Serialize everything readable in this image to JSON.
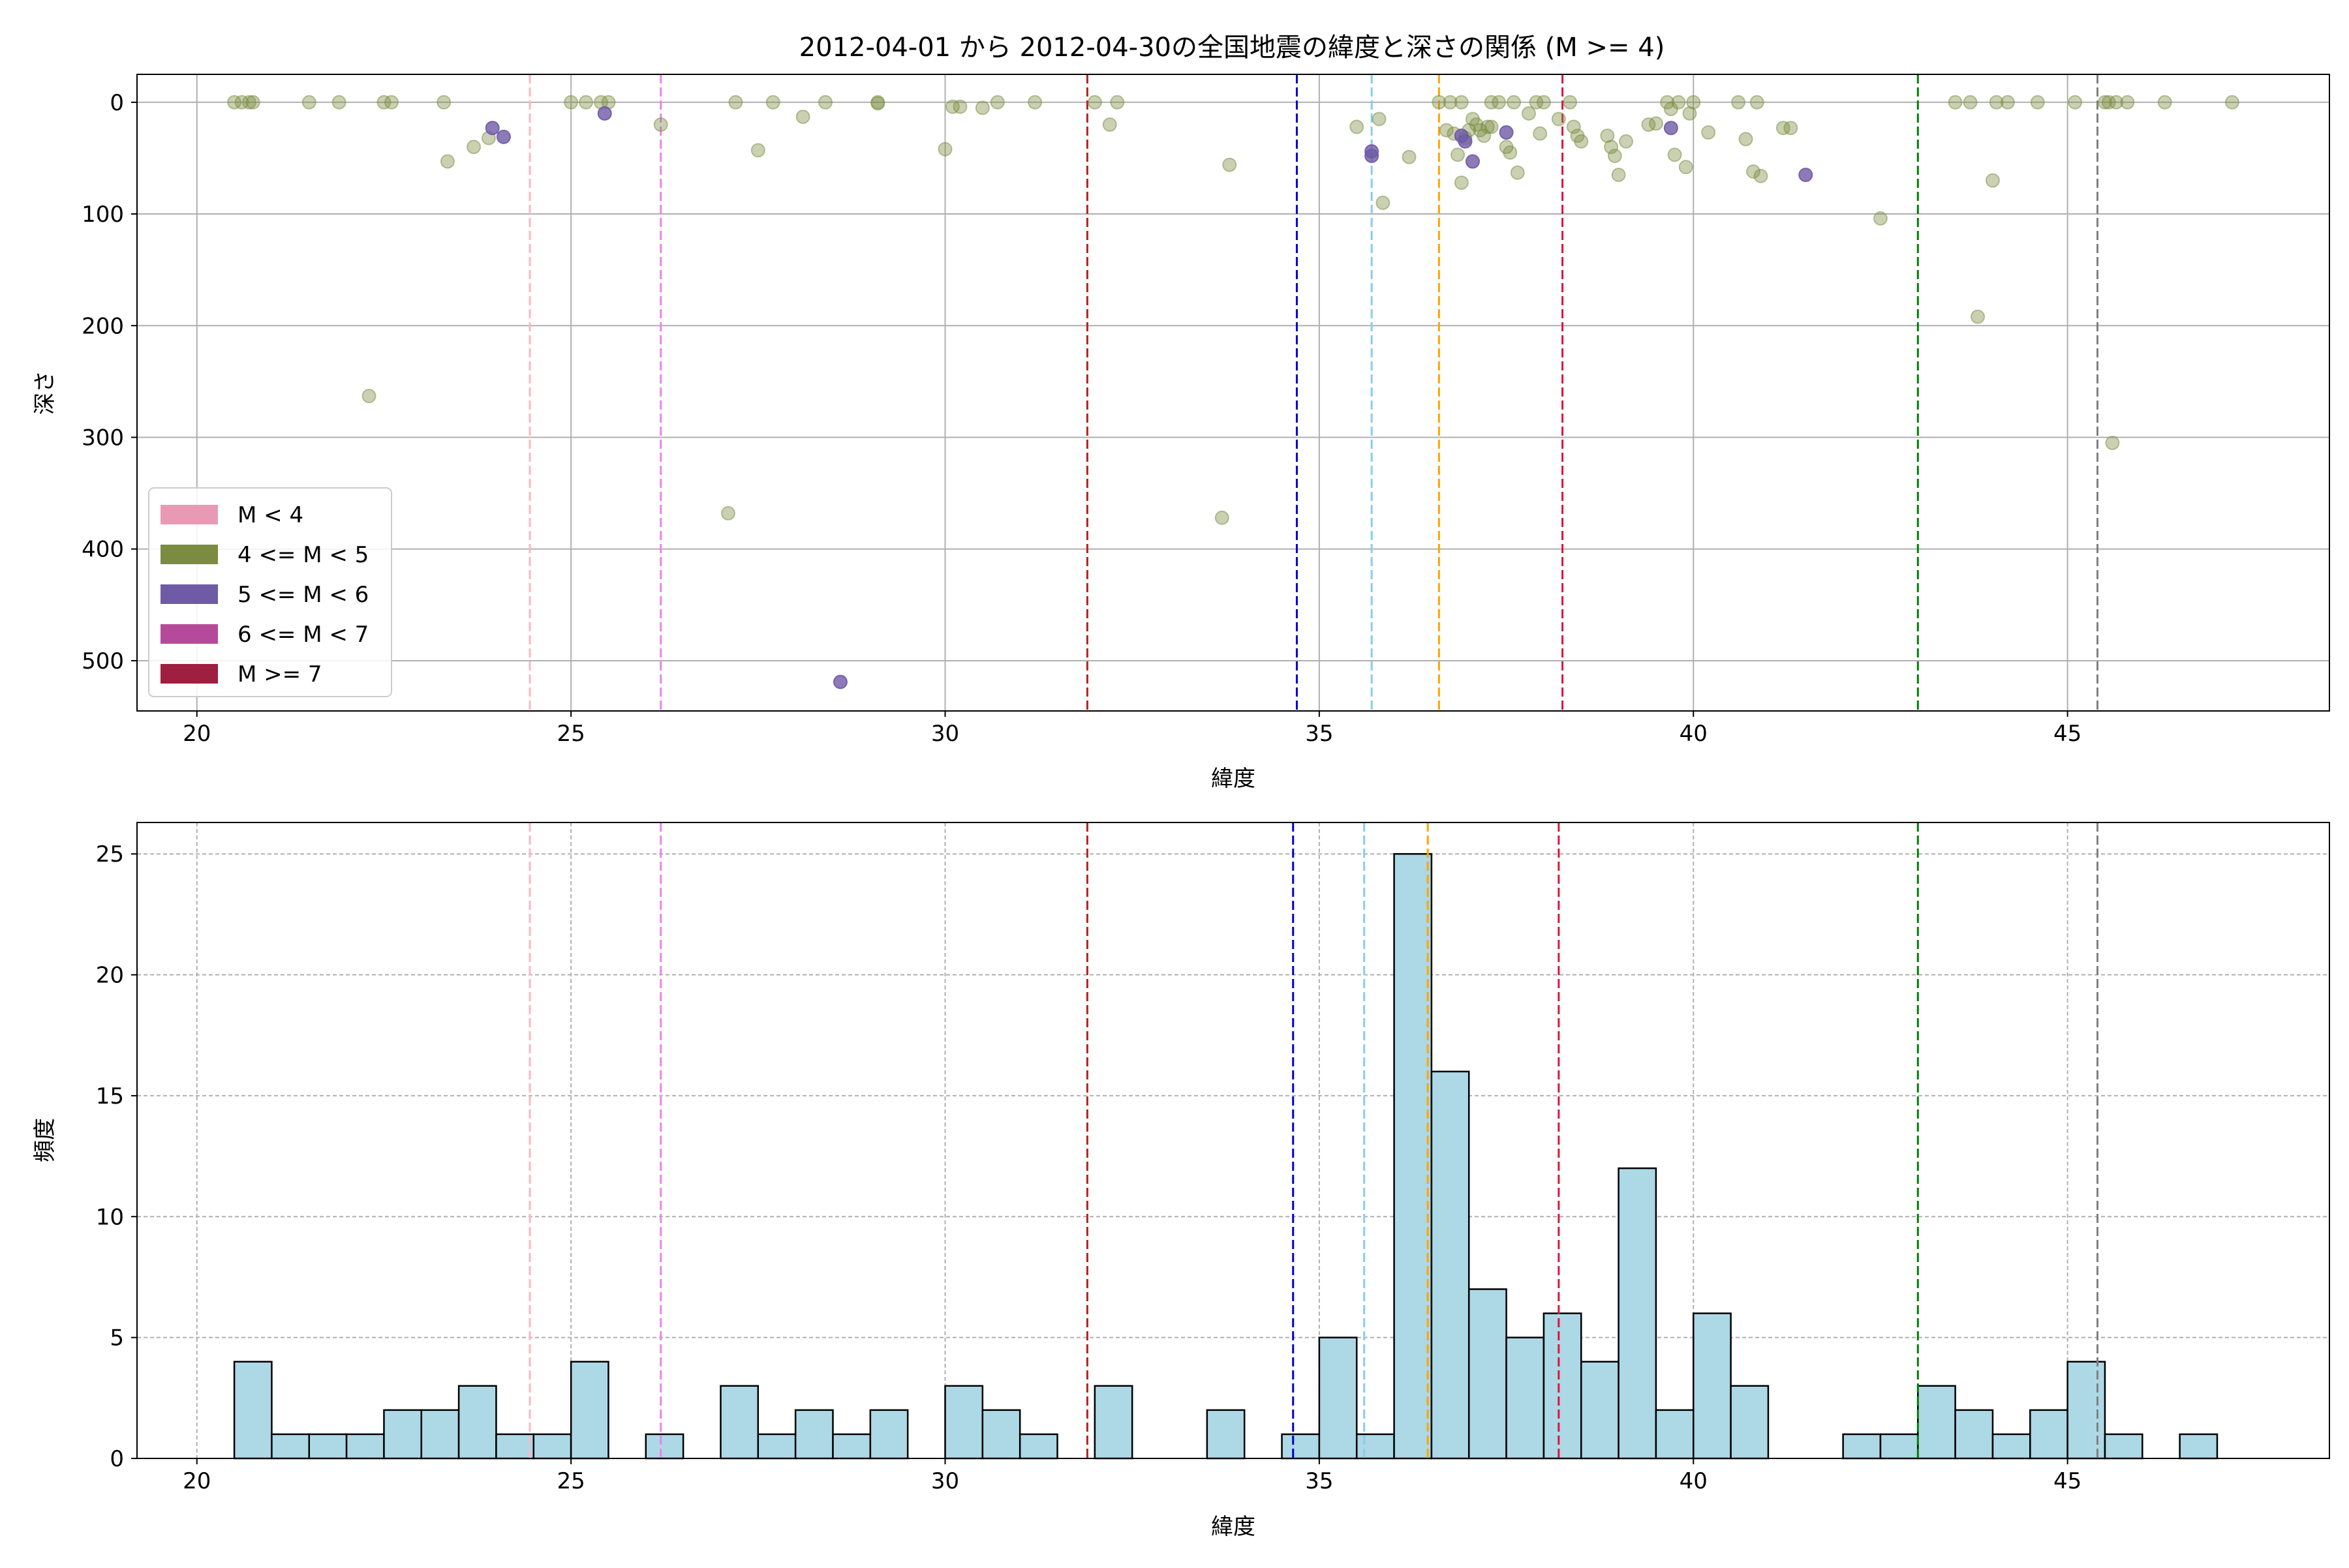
{
  "chart_data": [
    {
      "type": "scatter",
      "title": "2012-04-01 から 2012-04-30の全国地震の緯度と深さの関係 (M >= 4)",
      "xlabel": "緯度",
      "ylabel": "深さ",
      "xlim": [
        19.2,
        48.5
      ],
      "ylim": [
        545,
        -25
      ],
      "y_inverted": true,
      "xticks": [
        20,
        25,
        30,
        35,
        40,
        45
      ],
      "yticks": [
        0,
        100,
        200,
        300,
        400,
        500
      ],
      "grid": true,
      "legend_position": "lower-left",
      "legend": [
        {
          "label": "M < 4",
          "color": "#e89ab4"
        },
        {
          "label": "4 <= M < 5",
          "color": "#7b8c40"
        },
        {
          "label": "5 <= M < 6",
          "color": "#6f5aa6"
        },
        {
          "label": "6 <= M < 7",
          "color": "#b64a9a"
        },
        {
          "label": "M >= 7",
          "color": "#9e1f3f"
        }
      ],
      "vlines": [
        {
          "x": 24.45,
          "color": "#ffb6c1"
        },
        {
          "x": 26.2,
          "color": "#ee82ee"
        },
        {
          "x": 31.9,
          "color": "#b22222"
        },
        {
          "x": 34.7,
          "color": "#0000cd"
        },
        {
          "x": 35.7,
          "color": "#87ceeb"
        },
        {
          "x": 36.6,
          "color": "#ffa500"
        },
        {
          "x": 38.25,
          "color": "#dc143c"
        },
        {
          "x": 43.0,
          "color": "#008000"
        },
        {
          "x": 45.4,
          "color": "#808080"
        }
      ],
      "series": [
        {
          "magnitude_class": "4 <= M < 5",
          "color": "#7b8c40",
          "points": [
            [
              20.5,
              0
            ],
            [
              20.6,
              0
            ],
            [
              20.7,
              0
            ],
            [
              20.75,
              0
            ],
            [
              21.5,
              0
            ],
            [
              21.9,
              0
            ],
            [
              22.3,
              263
            ],
            [
              22.5,
              0
            ],
            [
              22.6,
              0
            ],
            [
              23.3,
              0
            ],
            [
              23.35,
              53
            ],
            [
              23.7,
              40
            ],
            [
              23.9,
              32
            ],
            [
              25.0,
              0
            ],
            [
              25.2,
              0
            ],
            [
              25.4,
              0
            ],
            [
              25.5,
              0
            ],
            [
              26.2,
              20
            ],
            [
              27.1,
              368
            ],
            [
              27.2,
              0
            ],
            [
              27.5,
              43
            ],
            [
              27.7,
              0
            ],
            [
              28.1,
              13
            ],
            [
              28.4,
              0
            ],
            [
              29.1,
              0
            ],
            [
              29.1,
              1
            ],
            [
              30.0,
              42
            ],
            [
              30.1,
              4
            ],
            [
              30.2,
              4
            ],
            [
              30.5,
              5
            ],
            [
              30.7,
              0
            ],
            [
              31.2,
              0
            ],
            [
              32.0,
              0
            ],
            [
              32.2,
              20
            ],
            [
              32.3,
              0
            ],
            [
              33.7,
              372
            ],
            [
              33.8,
              56
            ],
            [
              35.5,
              22
            ],
            [
              35.8,
              15
            ],
            [
              35.85,
              90
            ],
            [
              36.2,
              49
            ],
            [
              36.6,
              0
            ],
            [
              36.7,
              25
            ],
            [
              36.75,
              0
            ],
            [
              36.8,
              28
            ],
            [
              36.85,
              47
            ],
            [
              36.9,
              72
            ],
            [
              36.9,
              0
            ],
            [
              36.95,
              32
            ],
            [
              37.0,
              25
            ],
            [
              37.05,
              15
            ],
            [
              37.1,
              20
            ],
            [
              37.15,
              25
            ],
            [
              37.2,
              30
            ],
            [
              37.25,
              22
            ],
            [
              37.3,
              22
            ],
            [
              37.3,
              0
            ],
            [
              37.4,
              0
            ],
            [
              37.5,
              40
            ],
            [
              37.55,
              45
            ],
            [
              37.6,
              0
            ],
            [
              37.65,
              63
            ],
            [
              37.8,
              10
            ],
            [
              37.9,
              0
            ],
            [
              37.95,
              28
            ],
            [
              38.0,
              0
            ],
            [
              38.2,
              15
            ],
            [
              38.35,
              0
            ],
            [
              38.4,
              22
            ],
            [
              38.45,
              30
            ],
            [
              38.5,
              35
            ],
            [
              38.85,
              30
            ],
            [
              38.9,
              40
            ],
            [
              38.95,
              48
            ],
            [
              39.0,
              65
            ],
            [
              39.1,
              35
            ],
            [
              39.4,
              20
            ],
            [
              39.5,
              19
            ],
            [
              39.65,
              0
            ],
            [
              39.7,
              6
            ],
            [
              39.75,
              47
            ],
            [
              39.8,
              0
            ],
            [
              39.9,
              58
            ],
            [
              39.95,
              10
            ],
            [
              40.0,
              0
            ],
            [
              40.2,
              27
            ],
            [
              40.6,
              0
            ],
            [
              40.7,
              33
            ],
            [
              40.8,
              62
            ],
            [
              40.85,
              0
            ],
            [
              40.9,
              66
            ],
            [
              41.2,
              23
            ],
            [
              41.3,
              23
            ],
            [
              42.5,
              104
            ],
            [
              43.5,
              0
            ],
            [
              43.7,
              0
            ],
            [
              43.8,
              192
            ],
            [
              44.0,
              70
            ],
            [
              44.05,
              0
            ],
            [
              44.2,
              0
            ],
            [
              44.6,
              0
            ],
            [
              45.1,
              0
            ],
            [
              45.5,
              0
            ],
            [
              45.55,
              0
            ],
            [
              45.6,
              305
            ],
            [
              45.65,
              0
            ],
            [
              45.8,
              0
            ],
            [
              46.3,
              0
            ],
            [
              47.2,
              0
            ]
          ]
        },
        {
          "magnitude_class": "5 <= M < 6",
          "color": "#6f5aa6",
          "points": [
            [
              23.95,
              23
            ],
            [
              24.1,
              31
            ],
            [
              25.45,
              10
            ],
            [
              28.6,
              519
            ],
            [
              35.7,
              44
            ],
            [
              35.7,
              48
            ],
            [
              36.9,
              30
            ],
            [
              36.95,
              35
            ],
            [
              37.05,
              53
            ],
            [
              37.5,
              27
            ],
            [
              39.7,
              23
            ],
            [
              41.5,
              65
            ]
          ]
        }
      ]
    },
    {
      "type": "bar",
      "title": "",
      "xlabel": "緯度",
      "ylabel": "頻度",
      "xlim": [
        19.2,
        48.5
      ],
      "ylim": [
        0,
        26.3
      ],
      "xticks": [
        20,
        25,
        30,
        35,
        40,
        45
      ],
      "yticks": [
        0,
        5,
        10,
        15,
        20,
        25
      ],
      "grid": "dashed",
      "bar_color": "#add8e6",
      "bin_edges_start": 20.5,
      "bin_width": 0.5,
      "values": [
        4,
        1,
        1,
        1,
        2,
        2,
        3,
        1,
        1,
        4,
        0,
        1,
        0,
        3,
        1,
        2,
        1,
        2,
        0,
        3,
        2,
        1,
        0,
        3,
        0,
        0,
        2,
        0,
        1,
        5,
        1,
        25,
        16,
        7,
        5,
        6,
        4,
        12,
        2,
        6,
        3,
        0,
        0,
        1,
        1,
        3,
        2,
        1,
        2,
        4,
        1,
        0,
        1
      ],
      "vlines": [
        {
          "x": 24.45,
          "color": "#ffb6c1"
        },
        {
          "x": 26.2,
          "color": "#ee82ee"
        },
        {
          "x": 31.9,
          "color": "#b22222"
        },
        {
          "x": 34.65,
          "color": "#0000cd"
        },
        {
          "x": 35.6,
          "color": "#87ceeb"
        },
        {
          "x": 36.45,
          "color": "#ffa500"
        },
        {
          "x": 38.2,
          "color": "#dc143c"
        },
        {
          "x": 43.0,
          "color": "#008000"
        },
        {
          "x": 45.4,
          "color": "#808080"
        }
      ]
    }
  ]
}
